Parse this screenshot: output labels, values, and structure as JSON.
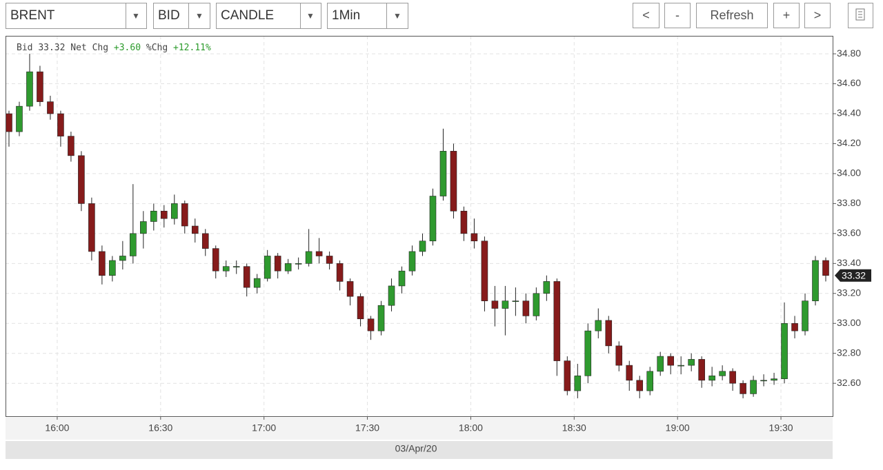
{
  "toolbar": {
    "symbol": "BRENT",
    "side": "BID",
    "style": "CANDLE",
    "interval": "1Min",
    "buttons": [
      "<",
      "-",
      "Refresh",
      "+",
      ">"
    ]
  },
  "chart_data": {
    "type": "candlestick",
    "info": {
      "bid_label": "Bid",
      "bid": "33.32",
      "net_chg_label": "Net Chg",
      "net_chg": "+3.60",
      "pct_chg_label": "%Chg",
      "pct_chg": "+12.11%"
    },
    "xlabel": "03/Apr/20",
    "x": [
      "15:46",
      "15:49",
      "15:52",
      "15:55",
      "15:58",
      "16:01",
      "16:04",
      "16:07",
      "16:10",
      "16:13",
      "16:16",
      "16:19",
      "16:22",
      "16:25",
      "16:28",
      "16:31",
      "16:34",
      "16:37",
      "16:40",
      "16:43",
      "16:46",
      "16:49",
      "16:52",
      "16:55",
      "16:58",
      "17:01",
      "17:04",
      "17:07",
      "17:10",
      "17:13",
      "17:16",
      "17:19",
      "17:22",
      "17:25",
      "17:28",
      "17:31",
      "17:34",
      "17:37",
      "17:40",
      "17:43",
      "17:46",
      "17:49",
      "17:52",
      "17:55",
      "17:58",
      "18:01",
      "18:04",
      "18:07",
      "18:10",
      "18:13",
      "18:16",
      "18:19",
      "18:22",
      "18:25",
      "18:28",
      "18:31",
      "18:34",
      "18:37",
      "18:40",
      "18:43",
      "18:46",
      "18:49",
      "18:52",
      "18:55",
      "18:58",
      "19:01",
      "19:04",
      "19:07",
      "19:10",
      "19:13",
      "19:16",
      "19:19",
      "19:22",
      "19:25",
      "19:28",
      "19:31",
      "19:34",
      "19:37",
      "19:40",
      "19:43"
    ],
    "open": [
      34.4,
      34.28,
      34.45,
      34.68,
      34.48,
      34.4,
      34.25,
      34.12,
      33.8,
      33.48,
      33.32,
      33.42,
      33.45,
      33.6,
      33.68,
      33.75,
      33.7,
      33.8,
      33.65,
      33.6,
      33.5,
      33.35,
      33.38,
      33.38,
      33.24,
      33.3,
      33.45,
      33.35,
      33.4,
      33.4,
      33.48,
      33.45,
      33.4,
      33.28,
      33.18,
      33.03,
      32.95,
      33.12,
      33.25,
      33.35,
      33.48,
      33.55,
      33.85,
      34.15,
      33.75,
      33.6,
      33.55,
      33.15,
      33.1,
      33.15,
      33.15,
      33.05,
      33.2,
      33.28,
      32.75,
      32.55,
      32.65,
      32.95,
      33.02,
      32.85,
      32.72,
      32.62,
      32.55,
      32.68,
      32.78,
      32.72,
      32.72,
      32.76,
      32.62,
      32.65,
      32.68,
      32.6,
      32.53,
      32.62,
      32.62,
      32.63,
      33.0,
      32.95,
      33.15,
      33.42
    ],
    "high": [
      34.42,
      34.48,
      34.8,
      34.72,
      34.52,
      34.42,
      34.28,
      34.15,
      33.84,
      33.52,
      33.45,
      33.55,
      33.93,
      33.75,
      33.8,
      33.79,
      33.86,
      33.82,
      33.7,
      33.63,
      33.52,
      33.42,
      33.42,
      33.4,
      33.33,
      33.49,
      33.47,
      33.43,
      33.44,
      33.63,
      33.57,
      33.48,
      33.42,
      33.3,
      33.2,
      33.05,
      33.15,
      33.3,
      33.38,
      33.52,
      33.6,
      33.9,
      34.3,
      34.2,
      33.78,
      33.7,
      33.58,
      33.25,
      33.25,
      33.24,
      33.2,
      33.24,
      33.32,
      33.3,
      32.78,
      32.73,
      33.0,
      33.1,
      33.05,
      32.88,
      32.75,
      32.65,
      32.71,
      32.81,
      32.8,
      32.78,
      32.8,
      32.78,
      32.71,
      32.72,
      32.7,
      32.62,
      32.65,
      32.66,
      32.67,
      33.14,
      33.05,
      33.2,
      33.45,
      33.44
    ],
    "low": [
      34.18,
      34.25,
      34.42,
      34.45,
      34.36,
      34.18,
      34.08,
      33.75,
      33.42,
      33.26,
      33.28,
      33.36,
      33.4,
      33.5,
      33.62,
      33.64,
      33.66,
      33.6,
      33.54,
      33.45,
      33.3,
      33.31,
      33.33,
      33.18,
      33.2,
      33.28,
      33.3,
      33.33,
      33.36,
      33.38,
      33.4,
      33.36,
      33.22,
      33.12,
      32.98,
      32.89,
      32.92,
      33.08,
      33.2,
      33.32,
      33.45,
      33.52,
      33.82,
      33.7,
      33.55,
      33.5,
      33.08,
      32.98,
      32.92,
      33.05,
      33.0,
      33.02,
      33.15,
      32.65,
      32.52,
      32.5,
      32.6,
      32.9,
      32.8,
      32.68,
      32.55,
      32.5,
      32.52,
      32.65,
      32.66,
      32.66,
      32.68,
      32.57,
      32.58,
      32.62,
      32.55,
      32.5,
      32.51,
      32.58,
      32.59,
      32.6,
      32.9,
      32.92,
      33.12,
      33.28
    ],
    "close": [
      34.28,
      34.45,
      34.68,
      34.48,
      34.4,
      34.25,
      34.12,
      33.8,
      33.48,
      33.32,
      33.42,
      33.45,
      33.6,
      33.68,
      33.75,
      33.7,
      33.8,
      33.65,
      33.6,
      33.5,
      33.35,
      33.38,
      33.38,
      33.24,
      33.3,
      33.45,
      33.35,
      33.4,
      33.4,
      33.48,
      33.45,
      33.4,
      33.28,
      33.18,
      33.03,
      32.95,
      33.12,
      33.25,
      33.35,
      33.48,
      33.55,
      33.85,
      34.15,
      33.75,
      33.6,
      33.55,
      33.15,
      33.1,
      33.15,
      33.15,
      33.05,
      33.2,
      33.28,
      32.75,
      32.55,
      32.65,
      32.95,
      33.02,
      32.85,
      32.72,
      32.62,
      32.55,
      32.68,
      32.78,
      32.72,
      32.72,
      32.76,
      32.62,
      32.65,
      32.68,
      32.6,
      32.53,
      32.62,
      32.62,
      32.63,
      33.0,
      32.95,
      33.15,
      33.42,
      33.32
    ],
    "up_color": "#2f9a2f",
    "down_color": "#861b1b",
    "last_price": 33.32,
    "xlim": [
      "15:45",
      "19:45"
    ],
    "xticks": [
      "16:00",
      "16:30",
      "17:00",
      "17:30",
      "18:00",
      "18:30",
      "19:00",
      "19:30"
    ],
    "ylim": [
      32.38,
      34.92
    ],
    "yticks": [
      {
        "value": 32.6,
        "label": "32.60"
      },
      {
        "value": 32.8,
        "label": "32.80"
      },
      {
        "value": 33.0,
        "label": "33.00"
      },
      {
        "value": 33.2,
        "label": "33.20"
      },
      {
        "value": 33.4,
        "label": "33.40"
      },
      {
        "value": 33.6,
        "label": "33.60"
      },
      {
        "value": 33.8,
        "label": "33.80"
      },
      {
        "value": 34.0,
        "label": "34.00"
      },
      {
        "value": 34.2,
        "label": "34.20"
      },
      {
        "value": 34.4,
        "label": "34.40"
      },
      {
        "value": 34.6,
        "label": "34.60"
      },
      {
        "value": 34.8,
        "label": "34.80"
      }
    ],
    "grid": true
  }
}
